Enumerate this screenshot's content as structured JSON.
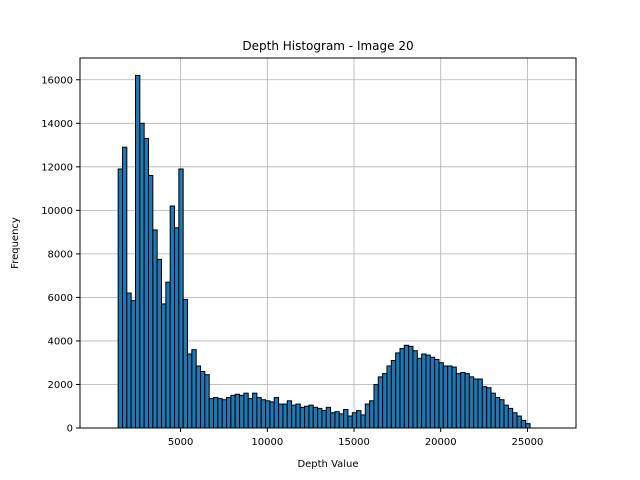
{
  "chart_data": {
    "type": "bar",
    "title": "Depth Histogram - Image 20",
    "xlabel": "Depth Value",
    "ylabel": "Frequency",
    "xlim": [
      -800,
      27800
    ],
    "ylim": [
      0,
      17000
    ],
    "x_ticks": [
      5000,
      10000,
      15000,
      20000,
      25000
    ],
    "x_tick_labels": [
      "5000",
      "10000",
      "15000",
      "20000",
      "25000"
    ],
    "y_ticks": [
      0,
      2000,
      4000,
      6000,
      8000,
      10000,
      12000,
      14000,
      16000
    ],
    "y_tick_labels": [
      "0",
      "2000",
      "4000",
      "6000",
      "8000",
      "10000",
      "12000",
      "14000",
      "16000"
    ],
    "grid": true,
    "bar_color": "#1f77b4",
    "edge_color": "#000000",
    "bin_start": 1400,
    "bin_width": 250,
    "values": [
      11900,
      12900,
      6200,
      5850,
      16200,
      14000,
      13300,
      11600,
      9100,
      7750,
      5700,
      6700,
      10200,
      9200,
      11900,
      5900,
      3400,
      3600,
      2850,
      2600,
      2450,
      1350,
      1400,
      1350,
      1300,
      1400,
      1500,
      1550,
      1500,
      1600,
      1350,
      1600,
      1400,
      1300,
      1250,
      1200,
      1400,
      1100,
      1100,
      1250,
      1050,
      1100,
      950,
      1000,
      1050,
      950,
      900,
      800,
      950,
      700,
      750,
      650,
      850,
      550,
      700,
      800,
      600,
      1100,
      1250,
      2000,
      2350,
      2500,
      2850,
      3100,
      3450,
      3650,
      3800,
      3750,
      3550,
      3200,
      3400,
      3350,
      3250,
      3150,
      3000,
      2850,
      2850,
      2800,
      2500,
      2550,
      2500,
      2350,
      2250,
      2250,
      1900,
      1850,
      1600,
      1400,
      1300,
      1050,
      900,
      700,
      550,
      350,
      200
    ]
  }
}
